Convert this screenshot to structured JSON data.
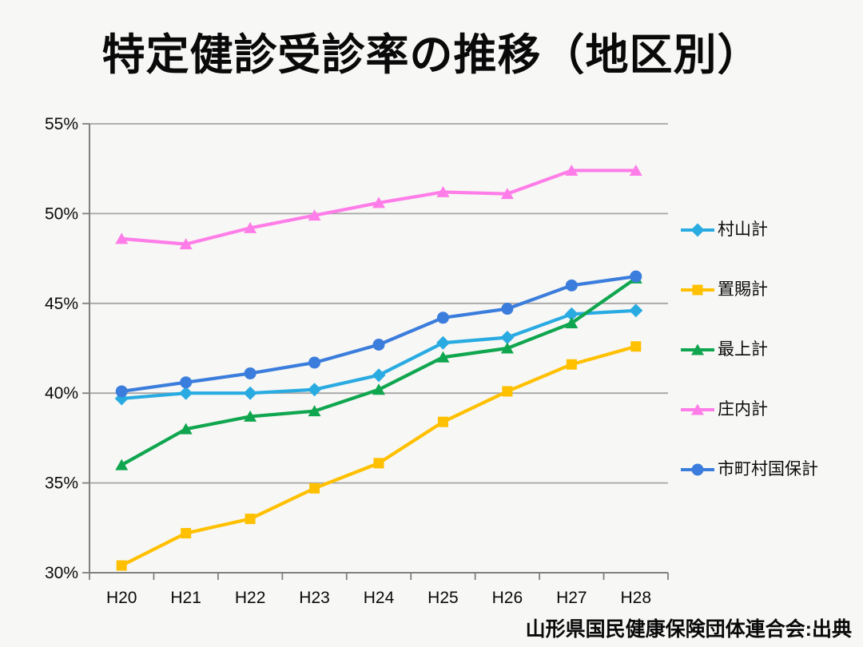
{
  "title": "特定健診受診率の推移（地区別）",
  "source_note": "山形県国民健康保険団体連合会:出典",
  "colors": {
    "background": "#F7F7F5",
    "gridline": "#A6A6A6",
    "axis": "#808080",
    "text": "#0a0a0a",
    "murayama": "#29ABE2",
    "okitama": "#FFC000",
    "mogami": "#10A64F",
    "shonai": "#FF7DE8",
    "shichoson_kokuho": "#3B7DDC"
  },
  "chart_data": {
    "type": "line",
    "title": "特定健診受診率の推移（地区別）",
    "categories": [
      "H20",
      "H21",
      "H22",
      "H23",
      "H24",
      "H25",
      "H26",
      "H27",
      "H28"
    ],
    "series": [
      {
        "name": "村山計",
        "marker": "diamond",
        "color": "#29ABE2",
        "values": [
          39.7,
          40.0,
          40.0,
          40.2,
          41.0,
          42.8,
          43.1,
          44.4,
          44.6
        ]
      },
      {
        "name": "置賜計",
        "marker": "square",
        "color": "#FFC000",
        "values": [
          30.4,
          32.2,
          33.0,
          34.7,
          36.1,
          38.4,
          40.1,
          41.6,
          42.6
        ]
      },
      {
        "name": "最上計",
        "marker": "triangle",
        "color": "#10A64F",
        "values": [
          36.0,
          38.0,
          38.7,
          39.0,
          40.2,
          42.0,
          42.5,
          43.9,
          46.4
        ]
      },
      {
        "name": "庄内計",
        "marker": "triangle",
        "color": "#FF7DE8",
        "values": [
          48.6,
          48.3,
          49.2,
          49.9,
          50.6,
          51.2,
          51.1,
          52.4,
          52.4
        ]
      },
      {
        "name": "市町村国保計",
        "marker": "circle",
        "color": "#3B7DDC",
        "values": [
          40.1,
          40.6,
          41.1,
          41.7,
          42.7,
          44.2,
          44.7,
          46.0,
          46.5
        ]
      }
    ],
    "xlabel": "",
    "ylabel": "",
    "ylim": [
      30,
      55
    ],
    "ytick_step": 5,
    "ytick_suffix": "%",
    "grid": true,
    "legend_position": "right"
  }
}
